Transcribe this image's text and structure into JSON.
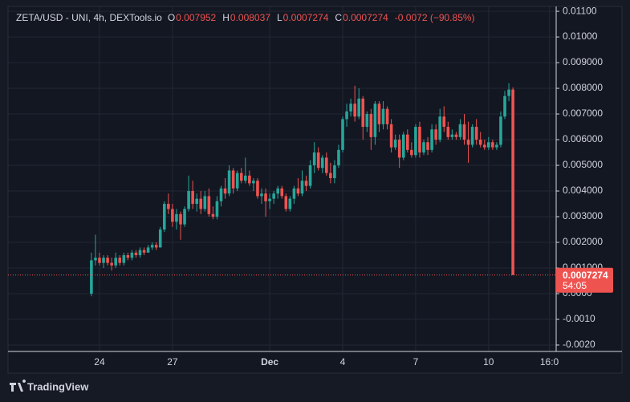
{
  "chart_data": {
    "type": "candlestick",
    "header": {
      "symbol": "ZETA/USD - UNI, 4h, DEXTools.io",
      "fields": [
        {
          "label": "O",
          "value": 0.007952
        },
        {
          "label": "H",
          "value": 0.008037
        },
        {
          "label": "L",
          "value": 0.0007274
        },
        {
          "label": "C",
          "value": 0.0007274
        }
      ],
      "change": "-0.0072 (−90.85%)"
    },
    "up_color": "#26a69a",
    "down_color": "#ef5350",
    "grid": true,
    "x": [
      -2,
      -1,
      0,
      1,
      2,
      3,
      4,
      5,
      6,
      7,
      8,
      9,
      10,
      11,
      12,
      13,
      14,
      15,
      16,
      17,
      18,
      19,
      20,
      21,
      22,
      23,
      24,
      25,
      26,
      27,
      28,
      29,
      30,
      31,
      32,
      33,
      34,
      35,
      36,
      37,
      38,
      39,
      40,
      41,
      42,
      43,
      44,
      45,
      46,
      47,
      48,
      49,
      50,
      51,
      52,
      53,
      54,
      55,
      56,
      57,
      58,
      59,
      60,
      61,
      62,
      63,
      64,
      65,
      66,
      67,
      68,
      69,
      70,
      71,
      72,
      73,
      74,
      75,
      76,
      77,
      78,
      79,
      80,
      81,
      82,
      83,
      84,
      85,
      86,
      87,
      88,
      89,
      90,
      91,
      92,
      93,
      94,
      95,
      96,
      97,
      98,
      99,
      100,
      101,
      102
    ],
    "ohlc": [
      [
        0.0,
        0.0016,
        -0.0001,
        0.0013
      ],
      [
        0.0013,
        0.0023,
        0.0011,
        0.0014
      ],
      [
        0.0014,
        0.0016,
        0.0011,
        0.0012
      ],
      [
        0.0012,
        0.0015,
        0.001,
        0.0014
      ],
      [
        0.0014,
        0.0015,
        0.0011,
        0.0012
      ],
      [
        0.0012,
        0.0014,
        0.0009,
        0.0011
      ],
      [
        0.0011,
        0.0016,
        0.001,
        0.0014
      ],
      [
        0.0014,
        0.0015,
        0.0011,
        0.0012
      ],
      [
        0.0012,
        0.0016,
        0.0011,
        0.0015
      ],
      [
        0.0015,
        0.0016,
        0.0013,
        0.0014
      ],
      [
        0.0014,
        0.0017,
        0.0013,
        0.0016
      ],
      [
        0.0016,
        0.0017,
        0.0014,
        0.0015
      ],
      [
        0.0015,
        0.0018,
        0.0014,
        0.0017
      ],
      [
        0.0017,
        0.0018,
        0.0015,
        0.0016
      ],
      [
        0.0016,
        0.0019,
        0.0016,
        0.0018
      ],
      [
        0.0018,
        0.002,
        0.0017,
        0.0019
      ],
      [
        0.0019,
        0.002,
        0.0017,
        0.0018
      ],
      [
        0.0018,
        0.0026,
        0.0018,
        0.0025
      ],
      [
        0.0025,
        0.0036,
        0.0024,
        0.0035
      ],
      [
        0.0035,
        0.0039,
        0.0031,
        0.0033
      ],
      [
        0.0033,
        0.0035,
        0.0026,
        0.0028
      ],
      [
        0.0028,
        0.0033,
        0.0025,
        0.0031
      ],
      [
        0.0031,
        0.0032,
        0.0021,
        0.0027
      ],
      [
        0.0027,
        0.0034,
        0.0026,
        0.0033
      ],
      [
        0.0033,
        0.0046,
        0.0032,
        0.004
      ],
      [
        0.004,
        0.0044,
        0.0033,
        0.0035
      ],
      [
        0.0035,
        0.0039,
        0.0032,
        0.0037
      ],
      [
        0.0037,
        0.004,
        0.0031,
        0.0033
      ],
      [
        0.0033,
        0.004,
        0.0032,
        0.0038
      ],
      [
        0.0038,
        0.0041,
        0.003,
        0.0031
      ],
      [
        0.0031,
        0.0034,
        0.0029,
        0.003
      ],
      [
        0.003,
        0.0038,
        0.0029,
        0.0036
      ],
      [
        0.0036,
        0.0042,
        0.0034,
        0.0041
      ],
      [
        0.0041,
        0.0045,
        0.0037,
        0.0039
      ],
      [
        0.0039,
        0.005,
        0.0038,
        0.0048
      ],
      [
        0.0048,
        0.0049,
        0.0039,
        0.0041
      ],
      [
        0.0041,
        0.0048,
        0.004,
        0.0047
      ],
      [
        0.0047,
        0.0049,
        0.0043,
        0.0044
      ],
      [
        0.0044,
        0.0053,
        0.0043,
        0.0046
      ],
      [
        0.0046,
        0.0048,
        0.0042,
        0.0043
      ],
      [
        0.0043,
        0.0045,
        0.004,
        0.0044
      ],
      [
        0.0044,
        0.0045,
        0.0037,
        0.0038
      ],
      [
        0.0038,
        0.0041,
        0.0035,
        0.0039
      ],
      [
        0.0039,
        0.0041,
        0.003,
        0.0036
      ],
      [
        0.0036,
        0.0039,
        0.0033,
        0.0037
      ],
      [
        0.0037,
        0.004,
        0.0035,
        0.0039
      ],
      [
        0.0039,
        0.0042,
        0.0037,
        0.0041
      ],
      [
        0.0041,
        0.0042,
        0.0037,
        0.0038
      ],
      [
        0.0038,
        0.0039,
        0.0032,
        0.0033
      ],
      [
        0.0033,
        0.0038,
        0.0032,
        0.0037
      ],
      [
        0.0037,
        0.0042,
        0.0035,
        0.0041
      ],
      [
        0.0041,
        0.0045,
        0.0038,
        0.0039
      ],
      [
        0.0039,
        0.0048,
        0.0038,
        0.0044
      ],
      [
        0.0044,
        0.0046,
        0.004,
        0.0042
      ],
      [
        0.0042,
        0.0052,
        0.0041,
        0.005
      ],
      [
        0.005,
        0.0059,
        0.0047,
        0.0055
      ],
      [
        0.0055,
        0.0057,
        0.0048,
        0.0049
      ],
      [
        0.0049,
        0.0054,
        0.0047,
        0.0053
      ],
      [
        0.0053,
        0.0055,
        0.0046,
        0.0047
      ],
      [
        0.0047,
        0.0051,
        0.0043,
        0.0045
      ],
      [
        0.0045,
        0.0052,
        0.0043,
        0.005
      ],
      [
        0.005,
        0.0058,
        0.0049,
        0.0056
      ],
      [
        0.0056,
        0.0069,
        0.0055,
        0.0068
      ],
      [
        0.0068,
        0.0074,
        0.0065,
        0.0071
      ],
      [
        0.0071,
        0.0076,
        0.0069,
        0.0074
      ],
      [
        0.0074,
        0.0081,
        0.0067,
        0.0069
      ],
      [
        0.0069,
        0.008,
        0.0068,
        0.0076
      ],
      [
        0.0076,
        0.0077,
        0.006,
        0.0065
      ],
      [
        0.0065,
        0.0071,
        0.0063,
        0.007
      ],
      [
        0.007,
        0.0072,
        0.0056,
        0.0061
      ],
      [
        0.0061,
        0.0075,
        0.0058,
        0.0074
      ],
      [
        0.0074,
        0.0075,
        0.0063,
        0.0066
      ],
      [
        0.0066,
        0.0075,
        0.0064,
        0.0072
      ],
      [
        0.0072,
        0.0073,
        0.0064,
        0.0066
      ],
      [
        0.0066,
        0.0068,
        0.0055,
        0.0057
      ],
      [
        0.0057,
        0.0062,
        0.0056,
        0.006
      ],
      [
        0.006,
        0.0062,
        0.0049,
        0.0053
      ],
      [
        0.0053,
        0.0063,
        0.0052,
        0.0062
      ],
      [
        0.0062,
        0.0064,
        0.0055,
        0.0056
      ],
      [
        0.0056,
        0.0059,
        0.0053,
        0.0054
      ],
      [
        0.0054,
        0.0066,
        0.0053,
        0.0065
      ],
      [
        0.0065,
        0.0067,
        0.0053,
        0.0055
      ],
      [
        0.0055,
        0.006,
        0.0054,
        0.0059
      ],
      [
        0.0059,
        0.0061,
        0.0054,
        0.0056
      ],
      [
        0.0056,
        0.0066,
        0.0055,
        0.0064
      ],
      [
        0.0064,
        0.0066,
        0.0058,
        0.006
      ],
      [
        0.006,
        0.0072,
        0.0059,
        0.0069
      ],
      [
        0.0069,
        0.0073,
        0.0063,
        0.0065
      ],
      [
        0.0065,
        0.0067,
        0.006,
        0.0061
      ],
      [
        0.0061,
        0.0064,
        0.006,
        0.0062
      ],
      [
        0.0062,
        0.0063,
        0.006,
        0.0061
      ],
      [
        0.0061,
        0.0068,
        0.006,
        0.0066
      ],
      [
        0.0066,
        0.007,
        0.0058,
        0.006
      ],
      [
        0.006,
        0.0067,
        0.0051,
        0.0058
      ],
      [
        0.0058,
        0.0066,
        0.0057,
        0.0065
      ],
      [
        0.0065,
        0.0068,
        0.0058,
        0.006
      ],
      [
        0.006,
        0.0063,
        0.0057,
        0.0058
      ],
      [
        0.0058,
        0.006,
        0.0056,
        0.0057
      ],
      [
        0.0057,
        0.0061,
        0.0056,
        0.0059
      ],
      [
        0.0059,
        0.006,
        0.0056,
        0.0057
      ],
      [
        0.0057,
        0.0059,
        0.0056,
        0.0058
      ],
      [
        0.0058,
        0.0071,
        0.0057,
        0.0069
      ],
      [
        0.0069,
        0.0079,
        0.0068,
        0.0077
      ],
      [
        0.0077,
        0.0082,
        0.0075,
        0.007952
      ],
      [
        0.007952,
        0.008037,
        0.0007274,
        0.0007274
      ]
    ],
    "xlim": [
      -22.57,
      112.67
    ],
    "xticks": [
      {
        "value": 0,
        "label": "24"
      },
      {
        "value": 18,
        "label": "27"
      },
      {
        "value": 42,
        "label": "Dec"
      },
      {
        "value": 60,
        "label": "4"
      },
      {
        "value": 78,
        "label": "7"
      },
      {
        "value": 96,
        "label": "10"
      },
      {
        "value": 111,
        "label": "16:0"
      }
    ],
    "ylim": [
      -0.00225,
      0.01119
    ],
    "yticks": [
      {
        "value": 0.011,
        "label": "0.01100"
      },
      {
        "value": 0.01,
        "label": "0.01000"
      },
      {
        "value": 0.009,
        "label": "0.009000"
      },
      {
        "value": 0.008,
        "label": "0.008000"
      },
      {
        "value": 0.007,
        "label": "0.007000"
      },
      {
        "value": 0.006,
        "label": "0.006000"
      },
      {
        "value": 0.005,
        "label": "0.005000"
      },
      {
        "value": 0.004,
        "label": "0.004000"
      },
      {
        "value": 0.003,
        "label": "0.003000"
      },
      {
        "value": 0.002,
        "label": "0.002000"
      },
      {
        "value": 0.001,
        "label": "0.001000"
      },
      {
        "value": 0,
        "label": "0.0000"
      },
      {
        "value": -0.001,
        "label": "-0.0010"
      },
      {
        "value": -0.002,
        "label": "-0.0020"
      }
    ],
    "price_marker": {
      "value": 0.0007274,
      "countdown": "54:05"
    },
    "brand": "TradingView"
  }
}
